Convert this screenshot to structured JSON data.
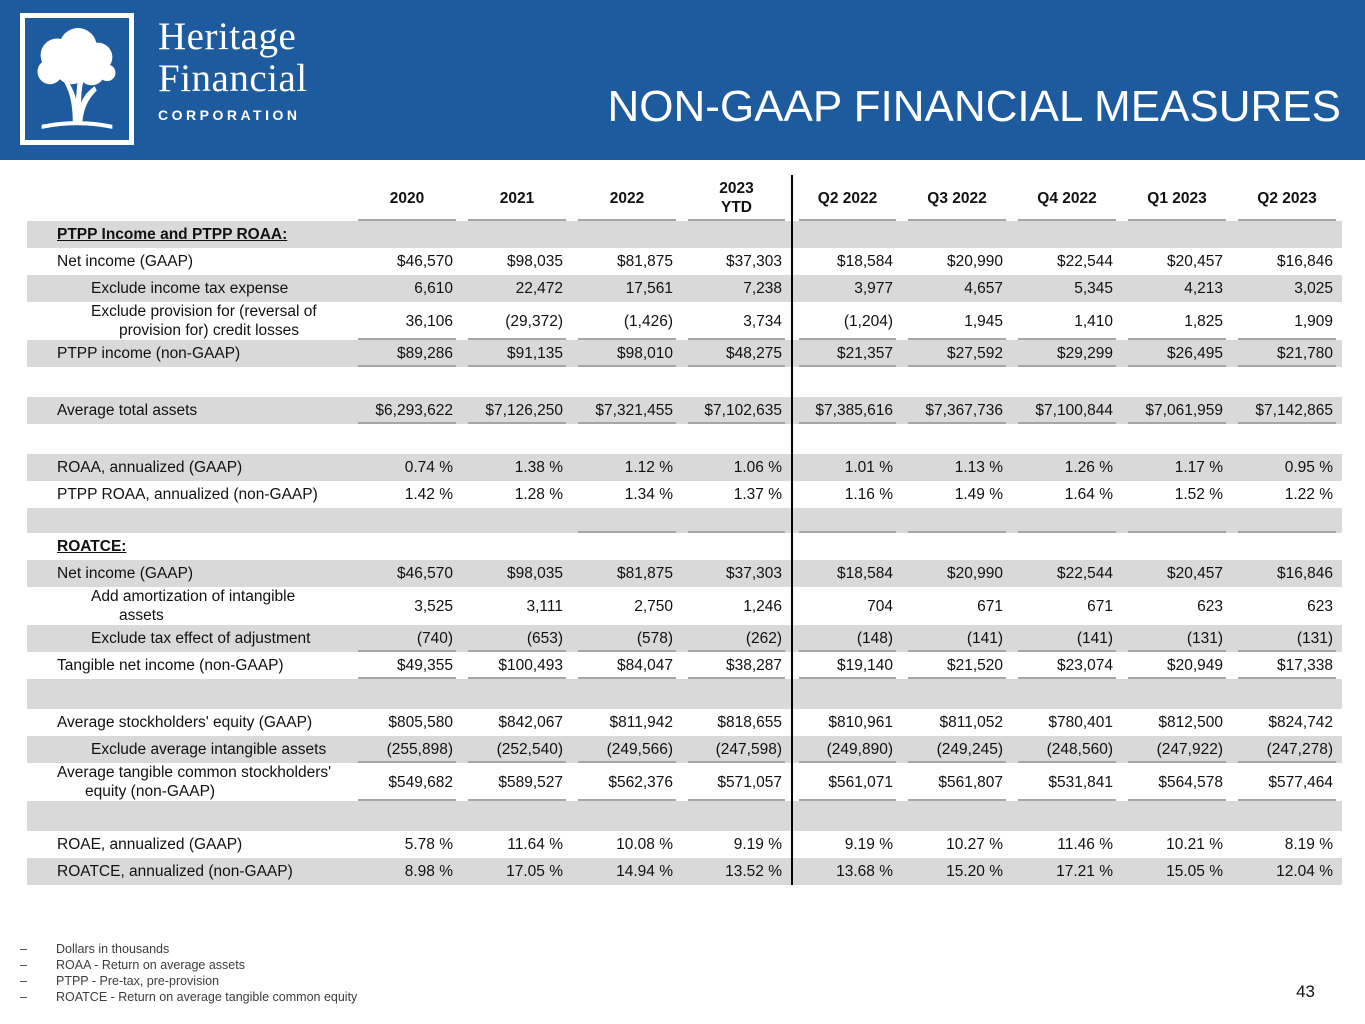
{
  "header": {
    "logo_line1": "Heritage",
    "logo_line2": "Financial",
    "logo_line3": "CORPORATION",
    "title": "NON-GAAP FINANCIAL MEASURES"
  },
  "colors": {
    "header_bg": "#1E5B9E",
    "row_shade": "#D9D9D9",
    "rule_gray": "#A6A6A6",
    "divider_black": "#000000"
  },
  "table": {
    "columns": [
      "2020",
      "2021",
      "2022",
      "2023\nYTD",
      "Q2 2022",
      "Q3 2022",
      "Q4 2022",
      "Q1 2023",
      "Q2 2023"
    ],
    "rows": [
      {
        "type": "section",
        "label": "PTPP Income and PTPP ROAA:",
        "shaded": true
      },
      {
        "type": "data",
        "label": "Net income (GAAP)",
        "shaded": false,
        "values": [
          "$46,570",
          "$98,035",
          "$81,875",
          "$37,303",
          "$18,584",
          "$20,990",
          "$22,544",
          "$20,457",
          "$16,846"
        ]
      },
      {
        "type": "data",
        "label": "Exclude income tax expense",
        "indent": true,
        "shaded": true,
        "values": [
          "6,610",
          "22,472",
          "17,561",
          "7,238",
          "3,977",
          "4,657",
          "5,345",
          "4,213",
          "3,025"
        ]
      },
      {
        "type": "data",
        "label": "Exclude provision for (reversal of\nprovision for) credit losses",
        "indent": true,
        "shaded": false,
        "underline": true,
        "values": [
          "36,106",
          "(29,372)",
          "(1,426)",
          "3,734",
          "(1,204)",
          "1,945",
          "1,410",
          "1,825",
          "1,909"
        ]
      },
      {
        "type": "data",
        "label": "PTPP income (non-GAAP)",
        "shaded": true,
        "underline": true,
        "values": [
          "$89,286",
          "$91,135",
          "$98,010",
          "$48,275",
          "$21,357",
          "$27,592",
          "$29,299",
          "$26,495",
          "$21,780"
        ]
      },
      {
        "type": "blank",
        "shaded": false
      },
      {
        "type": "data",
        "label": "Average total assets",
        "shaded": true,
        "underline": true,
        "values": [
          "$6,293,622",
          "$7,126,250",
          "$7,321,455",
          "$7,102,635",
          "$7,385,616",
          "$7,367,736",
          "$7,100,844",
          "$7,061,959",
          "$7,142,865"
        ]
      },
      {
        "type": "blank",
        "shaded": false
      },
      {
        "type": "data",
        "label": "ROAA, annualized (GAAP)",
        "shaded": true,
        "values": [
          "0.74 %",
          "1.38 %",
          "1.12 %",
          "1.06 %",
          "1.01 %",
          "1.13 %",
          "1.26 %",
          "1.17 %",
          "0.95 %"
        ]
      },
      {
        "type": "data",
        "label": "PTPP ROAA, annualized (non-GAAP)",
        "shaded": false,
        "values": [
          "1.42 %",
          "1.28 %",
          "1.34 %",
          "1.37 %",
          "1.16 %",
          "1.49 %",
          "1.64 %",
          "1.52 %",
          "1.22 %"
        ]
      },
      {
        "type": "spacer",
        "shaded": true,
        "underline_cols": [
          2,
          3,
          4,
          5,
          6,
          7,
          8
        ]
      },
      {
        "type": "section",
        "label": "ROATCE:",
        "shaded": false
      },
      {
        "type": "data",
        "label": "Net income (GAAP)",
        "shaded": true,
        "values": [
          "$46,570",
          "$98,035",
          "$81,875",
          "$37,303",
          "$18,584",
          "$20,990",
          "$22,544",
          "$20,457",
          "$16,846"
        ]
      },
      {
        "type": "data",
        "label": "Add amortization of intangible\nassets",
        "indent": true,
        "shaded": false,
        "values": [
          "3,525",
          "3,111",
          "2,750",
          "1,246",
          "704",
          "671",
          "671",
          "623",
          "623"
        ]
      },
      {
        "type": "data",
        "label": "Exclude tax effect of adjustment",
        "indent": true,
        "shaded": true,
        "underline": true,
        "values": [
          "(740)",
          "(653)",
          "(578)",
          "(262)",
          "(148)",
          "(141)",
          "(141)",
          "(131)",
          "(131)"
        ]
      },
      {
        "type": "data",
        "label": "Tangible net income (non-GAAP)",
        "shaded": false,
        "underline": true,
        "values": [
          "$49,355",
          "$100,493",
          "$84,047",
          "$38,287",
          "$19,140",
          "$21,520",
          "$23,074",
          "$20,949",
          "$17,338"
        ]
      },
      {
        "type": "blank",
        "shaded": true
      },
      {
        "type": "data",
        "label": "Average stockholders' equity (GAAP)",
        "shaded": false,
        "values": [
          "$805,580",
          "$842,067",
          "$811,942",
          "$818,655",
          "$810,961",
          "$811,052",
          "$780,401",
          "$812,500",
          "$824,742"
        ]
      },
      {
        "type": "data",
        "label": "Exclude average intangible assets",
        "indent": true,
        "shaded": true,
        "underline": true,
        "values": [
          "(255,898)",
          "(252,540)",
          "(249,566)",
          "(247,598)",
          "(249,890)",
          "(249,245)",
          "(248,560)",
          "(247,922)",
          "(247,278)"
        ]
      },
      {
        "type": "data",
        "label": "Average tangible common stockholders'\nequity (non-GAAP)",
        "shaded": false,
        "underline": true,
        "values": [
          "$549,682",
          "$589,527",
          "$562,376",
          "$571,057",
          "$561,071",
          "$561,807",
          "$531,841",
          "$564,578",
          "$577,464"
        ]
      },
      {
        "type": "blank",
        "shaded": true
      },
      {
        "type": "data",
        "label": "ROAE, annualized (GAAP)",
        "shaded": false,
        "values": [
          "5.78 %",
          "11.64 %",
          "10.08 %",
          "9.19 %",
          "9.19 %",
          "10.27 %",
          "11.46 %",
          "10.21 %",
          "8.19 %"
        ]
      },
      {
        "type": "data",
        "label": "ROATCE, annualized (non-GAAP)",
        "shaded": true,
        "values": [
          "8.98 %",
          "17.05 %",
          "14.94 %",
          "13.52 %",
          "13.68 %",
          "15.20 %",
          "17.21 %",
          "15.05 %",
          "12.04 %"
        ]
      }
    ]
  },
  "footnote_bullet": "–",
  "footnotes": [
    "Dollars in thousands",
    "ROAA - Return on average assets",
    "PTPP - Pre-tax, pre-provision",
    "ROATCE - Return on average tangible common equity"
  ],
  "page_number": "43"
}
